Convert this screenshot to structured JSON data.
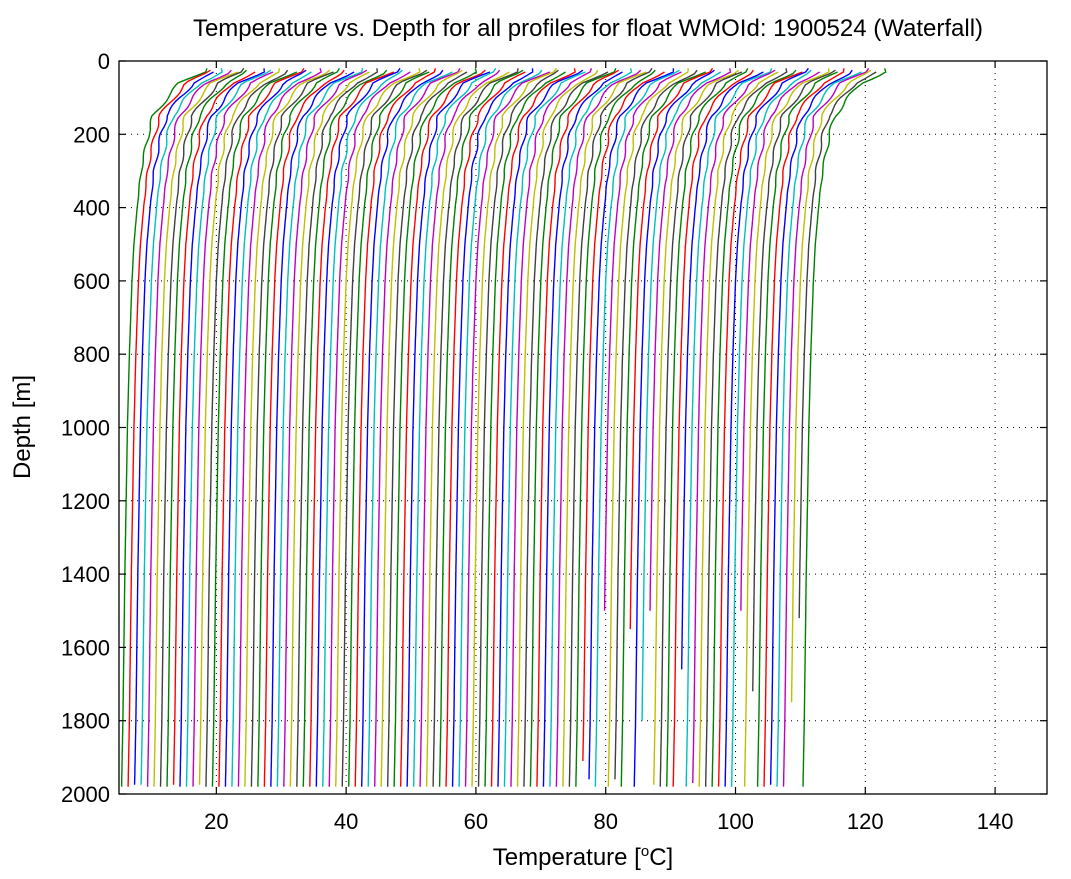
{
  "chart_data": {
    "type": "line",
    "title": "Temperature vs. Depth for all profiles for float WMOId: 1900524 (Waterfall)",
    "xlabel": "Temperature [",
    "xlabel_sup": "o",
    "xlabel_unit": "C]",
    "ylabel": "Depth [m]",
    "xlim": [
      5,
      148
    ],
    "ylim": [
      2000,
      0
    ],
    "y_reversed": true,
    "grid": "dotted",
    "x_ticks": [
      20,
      40,
      60,
      80,
      100,
      120,
      140
    ],
    "y_ticks": [
      0,
      200,
      400,
      600,
      800,
      1000,
      1200,
      1400,
      1600,
      1800,
      2000
    ],
    "x_tick_labels": [
      "20",
      "40",
      "60",
      "80",
      "100",
      "120",
      "140"
    ],
    "y_tick_labels": [
      "0",
      "200",
      "400",
      "600",
      "800",
      "1000",
      "1200",
      "1400",
      "1600",
      "1800",
      "2000"
    ],
    "colors": [
      "#008000",
      "#ff0000",
      "#0000ff",
      "#00bfbf",
      "#bf00bf",
      "#bfbf00",
      "#404040"
    ],
    "waterfall_offset": 1,
    "series_count": 106,
    "profile_depths": [
      0,
      30,
      60,
      100,
      150,
      200,
      300,
      400,
      500,
      600,
      800,
      1000,
      1200,
      1400,
      1600,
      1800,
      1980
    ],
    "base_profile": [
      13.0,
      12.6,
      9.0,
      7.0,
      4.9,
      4.1,
      3.0,
      2.4,
      1.9,
      1.6,
      1.2,
      0.9,
      0.7,
      0.5,
      0.35,
      0.2,
      0.0
    ],
    "start_temperature": 5.4,
    "max_depths": [
      1980,
      1980,
      1975,
      1975,
      1980,
      1980,
      1980,
      1980,
      1975,
      1980,
      1980,
      1980,
      1975,
      1980,
      1980,
      1980,
      1980,
      1980,
      1980,
      1980,
      1980,
      1980,
      1980,
      1980,
      1980,
      1980,
      1980,
      1980,
      1980,
      1980,
      1980,
      1980,
      1980,
      1980,
      1980,
      1980,
      1980,
      1980,
      1980,
      1980,
      1980,
      1980,
      1980,
      1980,
      1980,
      1980,
      1980,
      1980,
      1980,
      1980,
      1980,
      1980,
      1980,
      1980,
      1980,
      1980,
      1980,
      1980,
      1980,
      1980,
      1980,
      1980,
      1980,
      1980,
      1980,
      1980,
      1980,
      1980,
      1980,
      1980,
      1980,
      1910,
      1960,
      1980,
      1500,
      1980,
      1960,
      1980,
      1550,
      1980,
      1800,
      1500,
      1975,
      1980,
      1980,
      1980,
      1660,
      1980,
      1970,
      1980,
      1980,
      1980,
      1980,
      1980,
      1980,
      1500,
      1980,
      1720,
      1980,
      1980,
      1975,
      1980,
      1980,
      1750,
      1520,
      1980
    ]
  }
}
